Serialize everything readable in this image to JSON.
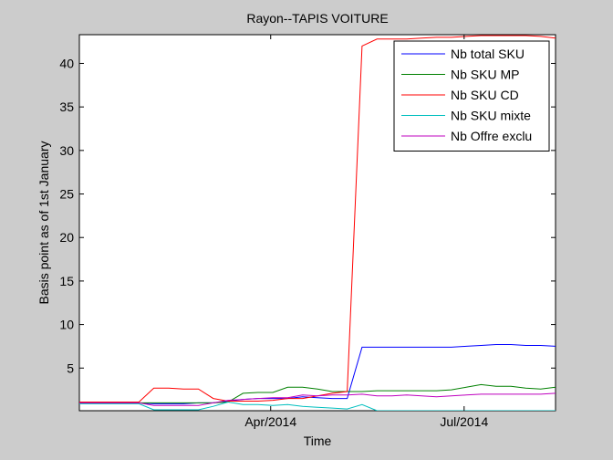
{
  "chart_data": {
    "type": "line",
    "title": "Rayon--TAPIS VOITURE",
    "xlabel": "Time",
    "ylabel": "Basis point as of 1st January",
    "x": [
      "2014-01-01",
      "2014-01-08",
      "2014-01-15",
      "2014-01-22",
      "2014-01-29",
      "2014-02-05",
      "2014-02-12",
      "2014-02-19",
      "2014-02-26",
      "2014-03-05",
      "2014-03-12",
      "2014-03-19",
      "2014-03-26",
      "2014-04-02",
      "2014-04-09",
      "2014-04-16",
      "2014-04-23",
      "2014-04-30",
      "2014-05-07",
      "2014-05-14",
      "2014-05-21",
      "2014-05-28",
      "2014-06-04",
      "2014-06-11",
      "2014-06-18",
      "2014-06-25",
      "2014-07-02",
      "2014-07-09",
      "2014-07-16",
      "2014-07-23",
      "2014-07-30",
      "2014-08-06",
      "2014-08-13"
    ],
    "xlim": [
      "2014-01-01",
      "2014-08-13"
    ],
    "ylim": [
      0.1,
      43.3
    ],
    "xticks": [
      {
        "date": "2014-04-01",
        "label": "Apr/2014"
      },
      {
        "date": "2014-07-01",
        "label": "Jul/2014"
      }
    ],
    "yticks": [
      5,
      10,
      15,
      20,
      25,
      30,
      35,
      40
    ],
    "grid": false,
    "legend_position": "top-right",
    "series": [
      {
        "name": "Nb total SKU",
        "color": "#0000ff",
        "values": [
          1.0,
          1.0,
          1.0,
          1.0,
          1.0,
          0.9,
          0.9,
          0.9,
          1.0,
          1.0,
          1.2,
          1.4,
          1.5,
          1.5,
          1.5,
          1.7,
          1.6,
          1.5,
          1.5,
          7.4,
          7.4,
          7.4,
          7.4,
          7.4,
          7.4,
          7.4,
          7.5,
          7.6,
          7.7,
          7.7,
          7.6,
          7.6,
          7.5
        ]
      },
      {
        "name": "Nb SKU MP",
        "color": "#008000",
        "values": [
          1.0,
          1.0,
          1.0,
          1.0,
          1.0,
          1.0,
          1.0,
          1.0,
          1.0,
          1.0,
          1.1,
          2.1,
          2.2,
          2.2,
          2.8,
          2.8,
          2.6,
          2.3,
          2.3,
          2.3,
          2.4,
          2.4,
          2.4,
          2.4,
          2.4,
          2.5,
          2.8,
          3.1,
          2.9,
          2.9,
          2.7,
          2.6,
          2.8
        ]
      },
      {
        "name": "Nb SKU CD",
        "color": "#ff0000",
        "values": [
          1.1,
          1.1,
          1.1,
          1.1,
          1.1,
          2.7,
          2.7,
          2.6,
          2.6,
          1.5,
          1.2,
          1.2,
          1.2,
          1.3,
          1.5,
          1.5,
          1.8,
          2.1,
          2.3,
          42.0,
          42.8,
          42.8,
          42.8,
          42.9,
          43.0,
          43.0,
          43.1,
          43.2,
          43.2,
          43.2,
          43.2,
          43.1,
          42.9
        ]
      },
      {
        "name": "Nb SKU mixte",
        "color": "#00bfbf",
        "values": [
          0.9,
          0.9,
          0.9,
          0.9,
          0.9,
          0.2,
          0.2,
          0.2,
          0.2,
          0.6,
          1.1,
          0.8,
          0.8,
          0.7,
          0.8,
          0.6,
          0.5,
          0.4,
          0.3,
          0.8,
          0.1,
          0.1,
          0.1,
          0.1,
          0.1,
          0.1,
          0.1,
          0.1,
          0.1,
          0.1,
          0.1,
          0.1,
          0.1
        ]
      },
      {
        "name": "Nb Offre exclu",
        "color": "#bf00bf",
        "values": [
          1.0,
          1.0,
          1.0,
          1.0,
          1.0,
          0.7,
          0.7,
          0.7,
          0.7,
          1.0,
          1.3,
          1.4,
          1.5,
          1.6,
          1.6,
          1.9,
          1.8,
          1.9,
          1.9,
          2.0,
          1.8,
          1.8,
          1.9,
          1.8,
          1.7,
          1.8,
          1.9,
          2.0,
          2.0,
          2.0,
          2.0,
          2.0,
          2.1
        ]
      }
    ]
  }
}
